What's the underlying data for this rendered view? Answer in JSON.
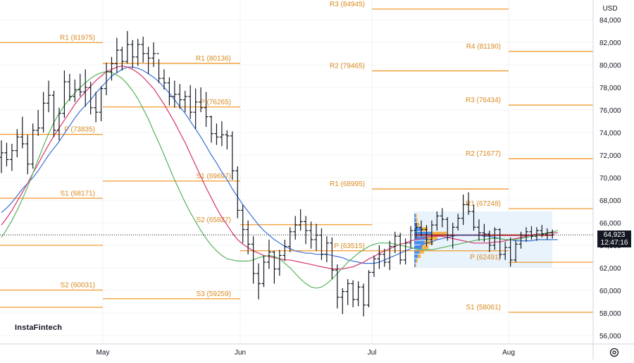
{
  "currency": "USD",
  "brand": "InstaFintech",
  "price_tag": {
    "price": "64,923",
    "countdown": "12:47:16"
  },
  "colors": {
    "pivot": "#f29a2e",
    "pivot_text": "#d98a20",
    "sma_slow": "#3b6fd6",
    "sma_mid": "#d6336c",
    "sma_fast": "#57b35a",
    "bar": "#131722",
    "vp_up": "#2f7fe8",
    "vp_down": "#f4a62a",
    "poc": "#c62828"
  },
  "chart_data": {
    "type": "ohlc",
    "title": "",
    "ylim": [
      55000,
      85000
    ],
    "y_ticks": [
      "84,000",
      "82,000",
      "80,000",
      "78,000",
      "76,000",
      "74,000",
      "72,000",
      "70,000",
      "68,000",
      "66,000",
      "64,000",
      "62,000",
      "60,000",
      "58,000",
      "56,000"
    ],
    "x_ticks": [
      "May",
      "Jun",
      "Jul",
      "Aug"
    ],
    "current_price": 64923,
    "pivot_levels": [
      {
        "label": "R1 (81975)",
        "value": 81975,
        "period": "may"
      },
      {
        "label": "P (73835)",
        "value": 73835,
        "period": "may"
      },
      {
        "label": "S1 (68171)",
        "value": 68171,
        "period": "may"
      },
      {
        "label": "S2 (60031)",
        "value": 60031,
        "period": "may"
      },
      {
        "label": "R1 (80136)",
        "value": 80136,
        "period": "jun"
      },
      {
        "label": "P (76265)",
        "value": 76265,
        "period": "jun"
      },
      {
        "label": "S1 (69697)",
        "value": 69697,
        "period": "jun"
      },
      {
        "label": "S2 (65827)",
        "value": 65827,
        "period": "jun"
      },
      {
        "label": "S3 (59259)",
        "value": 59259,
        "period": "jun"
      },
      {
        "label": "R3 (84945)",
        "value": 84945,
        "period": "jul"
      },
      {
        "label": "R2 (79465)",
        "value": 79465,
        "period": "jul"
      },
      {
        "label": "R1 (68995)",
        "value": 68995,
        "period": "jul"
      },
      {
        "label": "P (63515)",
        "value": 63515,
        "period": "jul"
      },
      {
        "label": "R4 (81190)",
        "value": 81190,
        "period": "aug"
      },
      {
        "label": "R3 (76434)",
        "value": 76434,
        "period": "aug"
      },
      {
        "label": "R2 (71677)",
        "value": 71677,
        "period": "aug"
      },
      {
        "label": "R1 (67248)",
        "value": 67248,
        "period": "aug"
      },
      {
        "label": "P (62491)",
        "value": 62491,
        "period": "aug"
      },
      {
        "label": "S1 (58061)",
        "value": 58061,
        "period": "aug"
      }
    ],
    "series": [
      {
        "values": [
          [
            71800,
            73300,
            70400,
            72200
          ],
          [
            72200,
            73100,
            71000,
            71600
          ],
          [
            71600,
            73000,
            70600,
            72400
          ],
          [
            72400,
            74300,
            71800,
            73600
          ],
          [
            73600,
            75400,
            72600,
            73000
          ],
          [
            73000,
            73800,
            70300,
            71200
          ],
          [
            71200,
            74800,
            70800,
            74200
          ],
          [
            74200,
            76000,
            73700,
            74400
          ],
          [
            74400,
            77600,
            74000,
            76600
          ],
          [
            76600,
            78600,
            75800,
            77300
          ],
          [
            77300,
            77700,
            73600,
            74200
          ],
          [
            74200,
            76200,
            73300,
            75700
          ],
          [
            75700,
            79500,
            75300,
            78500
          ],
          [
            78500,
            79200,
            76800,
            77200
          ],
          [
            77200,
            78700,
            76700,
            77800
          ],
          [
            77800,
            79200,
            77200,
            77600
          ],
          [
            77600,
            79600,
            76300,
            78000
          ],
          [
            78000,
            78500,
            75600,
            76200
          ],
          [
            76200,
            77600,
            74900,
            75800
          ],
          [
            75800,
            78100,
            75000,
            77900
          ],
          [
            77900,
            80200,
            77300,
            79400
          ],
          [
            79400,
            80700,
            78600,
            80100
          ],
          [
            80100,
            82400,
            79300,
            81300
          ],
          [
            81300,
            81600,
            79500,
            80300
          ],
          [
            80300,
            83000,
            80100,
            81800
          ],
          [
            81800,
            82200,
            79700,
            80700
          ],
          [
            80700,
            82300,
            79900,
            81800
          ],
          [
            81800,
            82500,
            80200,
            81000
          ],
          [
            81000,
            81600,
            79200,
            80600
          ],
          [
            80600,
            82000,
            79800,
            81000
          ],
          [
            81000,
            80500,
            78400,
            78800
          ],
          [
            78800,
            79600,
            77800,
            78400
          ],
          [
            78400,
            78900,
            76400,
            77200
          ],
          [
            77200,
            78600,
            76200,
            77400
          ],
          [
            77400,
            78300,
            76100,
            76900
          ],
          [
            76900,
            77700,
            75800,
            77200
          ],
          [
            77200,
            78200,
            75200,
            75800
          ],
          [
            75800,
            77900,
            74300,
            76700
          ],
          [
            76700,
            78000,
            75800,
            76200
          ],
          [
            76200,
            77600,
            74500,
            75400
          ],
          [
            75400,
            75500,
            73100,
            73900
          ],
          [
            73900,
            74800,
            72900,
            73600
          ],
          [
            73600,
            75000,
            72800,
            73800
          ],
          [
            73800,
            74200,
            72500,
            73700
          ],
          [
            73700,
            74100,
            69800,
            70600
          ],
          [
            70600,
            71000,
            66400,
            67100
          ],
          [
            67100,
            67600,
            64200,
            65400
          ],
          [
            65400,
            66200,
            63200,
            64100
          ],
          [
            64100,
            64800,
            60600,
            61500
          ],
          [
            61500,
            62400,
            59200,
            60600
          ],
          [
            60600,
            63100,
            60300,
            62500
          ],
          [
            62500,
            64500,
            61900,
            63400
          ],
          [
            63400,
            63500,
            60600,
            61900
          ],
          [
            61900,
            63600,
            61300,
            63100
          ],
          [
            63100,
            64500,
            62600,
            63900
          ],
          [
            63900,
            65600,
            63400,
            65200
          ],
          [
            65200,
            66600,
            64500,
            65800
          ],
          [
            65800,
            67200,
            65300,
            66100
          ],
          [
            66100,
            66600,
            64100,
            65300
          ],
          [
            65300,
            66100,
            63700,
            64500
          ],
          [
            64500,
            65900,
            63500,
            64900
          ],
          [
            64900,
            65500,
            62700,
            63200
          ],
          [
            63200,
            64800,
            62500,
            64200
          ],
          [
            64200,
            64700,
            61000,
            61800
          ],
          [
            61800,
            62300,
            58400,
            59400
          ],
          [
            59400,
            60200,
            57900,
            59900
          ],
          [
            59900,
            61000,
            58700,
            60600
          ],
          [
            60600,
            60900,
            58500,
            59200
          ],
          [
            59200,
            60800,
            58600,
            60300
          ],
          [
            60300,
            60600,
            57700,
            58700
          ],
          [
            58700,
            61800,
            58500,
            61600
          ],
          [
            61600,
            63100,
            61200,
            62800
          ],
          [
            62800,
            64000,
            61900,
            63200
          ],
          [
            63200,
            63700,
            62100,
            62500
          ],
          [
            62500,
            64400,
            61800,
            63900
          ],
          [
            63900,
            65200,
            63300,
            64800
          ],
          [
            64800,
            65100,
            62300,
            62700
          ],
          [
            62700,
            64600,
            62300,
            64200
          ],
          [
            64200,
            65700,
            63800,
            65300
          ],
          [
            65300,
            66000,
            64600,
            65600
          ],
          [
            65600,
            66200,
            64800,
            65400
          ],
          [
            65400,
            65800,
            63900,
            64500
          ],
          [
            64500,
            66200,
            64000,
            65800
          ],
          [
            65800,
            67000,
            65300,
            66600
          ],
          [
            66600,
            67300,
            65600,
            66300
          ],
          [
            66300,
            66500,
            64400,
            64900
          ],
          [
            64900,
            66000,
            63700,
            65600
          ],
          [
            65600,
            66800,
            65300,
            66400
          ],
          [
            66400,
            68500,
            65800,
            67600
          ],
          [
            67600,
            68700,
            66700,
            67000
          ],
          [
            67000,
            67600,
            65300,
            65600
          ],
          [
            65600,
            66300,
            64400,
            65100
          ],
          [
            65100,
            65900,
            64300,
            65000
          ],
          [
            65000,
            65300,
            63400,
            64000
          ],
          [
            64000,
            65600,
            63600,
            65400
          ],
          [
            65400,
            65500,
            62800,
            63200
          ],
          [
            63200,
            64300,
            62700,
            63800
          ],
          [
            63800,
            64700,
            62100,
            62700
          ],
          [
            62700,
            64400,
            62500,
            64100
          ],
          [
            64100,
            65200,
            63700,
            64900
          ],
          [
            64900,
            65600,
            64300,
            65200
          ],
          [
            65200,
            65700,
            64500,
            64800
          ],
          [
            64800,
            65600,
            64400,
            65300
          ],
          [
            65300,
            65800,
            64700,
            65000
          ],
          [
            65000,
            65500,
            64500,
            65100
          ],
          [
            65100,
            65400,
            64600,
            64923
          ]
        ]
      },
      {
        "name": "",
        "values": [
          66900,
          67300,
          67800,
          68400,
          69000,
          69500,
          70000,
          70600,
          71300,
          72000,
          72600,
          73200,
          73900,
          74600,
          75300,
          75900,
          76400,
          76900,
          77500,
          78000,
          78500,
          79000,
          79300,
          79600,
          79800,
          79800,
          79700,
          79500,
          79200,
          78900,
          78500,
          78000,
          77500,
          76900,
          76300,
          75700,
          75000,
          74300,
          73600,
          72800,
          72000,
          71300,
          70500,
          69800,
          69000,
          68300,
          67600,
          67000,
          66400,
          65800,
          65300,
          64900,
          64500,
          64200,
          63900,
          63700,
          63500,
          63400,
          63300,
          63300,
          63200,
          63200,
          63200,
          63100,
          63000,
          62900,
          62700,
          62600,
          62500,
          62400,
          62400,
          62400,
          62500,
          62700,
          62900,
          63100,
          63300,
          63500,
          63700,
          63800,
          64000,
          64200,
          64300,
          64500,
          64600,
          64700,
          64800,
          64900,
          64900,
          64900,
          64900,
          64900,
          64800,
          64800,
          64700,
          64600,
          64500,
          64500,
          64400,
          64400,
          64400,
          64400,
          64500,
          64500,
          64500,
          64500,
          64500
        ]
      },
      {
        "name": "",
        "values": [
          65800,
          66400,
          67100,
          67900,
          68700,
          69500,
          70400,
          71200,
          72100,
          72900,
          73700,
          74400,
          75100,
          75800,
          76500,
          77100,
          77600,
          78100,
          78600,
          79000,
          79400,
          79600,
          79800,
          79900,
          79800,
          79600,
          79300,
          78900,
          78400,
          77900,
          77200,
          76500,
          75700,
          74900,
          74000,
          73100,
          72100,
          71100,
          70100,
          69100,
          68200,
          67300,
          66500,
          65800,
          65100,
          64500,
          64100,
          63800,
          63500,
          63300,
          63100,
          63000,
          62900,
          62800,
          62700,
          62700,
          62600,
          62500,
          62400,
          62300,
          62200,
          62100,
          62000,
          61900,
          61900,
          61900,
          62000,
          62100,
          62300,
          62500,
          62800,
          63000,
          63300,
          63500,
          63700,
          63900,
          64100,
          64200,
          64400,
          64500,
          64600,
          64700,
          64800,
          64800,
          64800,
          64700,
          64600,
          64500,
          64400,
          64300,
          64200,
          64200,
          64200,
          64200,
          64300,
          64300,
          64400,
          64500,
          64600,
          64700,
          64800,
          64900,
          65000,
          65000,
          65100,
          65100,
          65100
        ]
      },
      {
        "name": "",
        "values": [
          64700,
          65400,
          66200,
          67100,
          68100,
          69200,
          70400,
          71600,
          72800,
          73900,
          74900,
          75700,
          76400,
          77000,
          77500,
          78000,
          78400,
          78800,
          79100,
          79300,
          79400,
          79300,
          79100,
          78800,
          78300,
          77700,
          77000,
          76100,
          75200,
          74100,
          73100,
          72000,
          70900,
          69800,
          68800,
          67800,
          66900,
          66100,
          65300,
          64600,
          64000,
          63500,
          63100,
          62800,
          62700,
          62600,
          62600,
          62600,
          62700,
          62900,
          63000,
          63100,
          63000,
          62800,
          62400,
          62000,
          61500,
          61000,
          60600,
          60300,
          60200,
          60300,
          60600,
          61000,
          61500,
          62000,
          62500,
          62900,
          63300,
          63600,
          63900,
          64100,
          64200,
          64200,
          64200,
          64100,
          64000,
          63900,
          63800,
          63700,
          63600,
          63600,
          63600,
          63700,
          63800,
          63900,
          64000,
          64100,
          64200,
          64300,
          64400,
          64500,
          64500,
          64600,
          64600,
          64600,
          64500,
          64500,
          64500,
          64600,
          64700,
          64800,
          64900,
          65000,
          65100,
          65200,
          65300
        ]
      }
    ],
    "volume_profile": {
      "price_range": [
        62000,
        67000
      ],
      "bins": [
        [
          66600,
          0.08
        ],
        [
          66200,
          0.1
        ],
        [
          65800,
          0.16
        ],
        [
          65400,
          0.42
        ],
        [
          65000,
          1.0
        ],
        [
          64600,
          0.72
        ],
        [
          64200,
          0.58
        ],
        [
          63800,
          0.44
        ],
        [
          63400,
          0.3
        ],
        [
          63000,
          0.2
        ],
        [
          62600,
          0.1
        ],
        [
          62200,
          0.06
        ]
      ]
    }
  }
}
